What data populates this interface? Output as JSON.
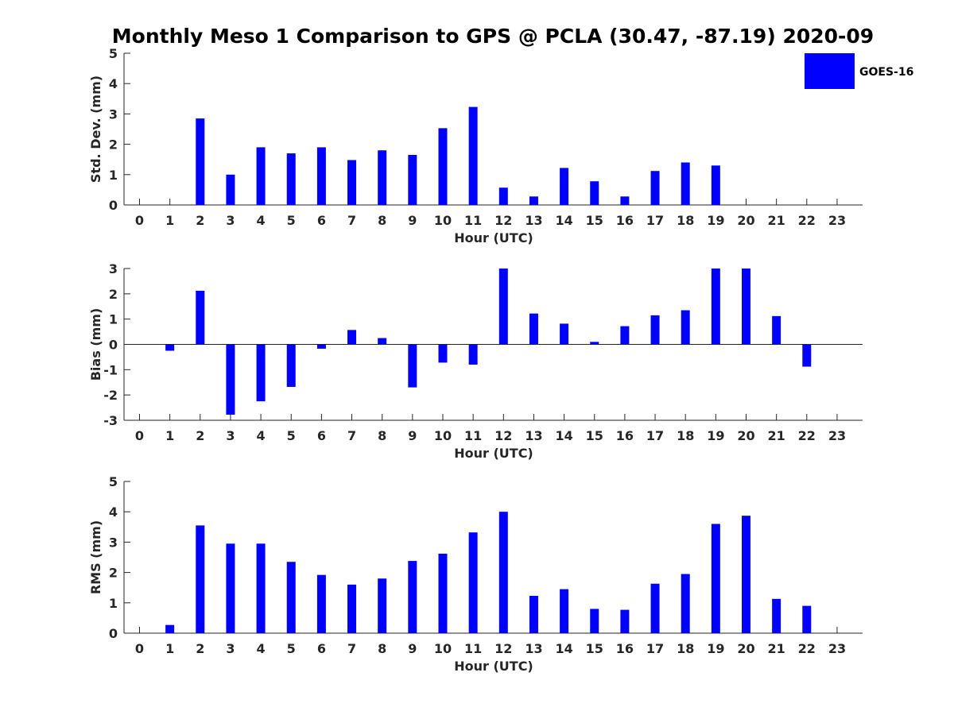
{
  "title": "Monthly Meso 1 Comparison to GPS @ PCLA (30.47, -87.19) 2020-09",
  "legend": {
    "label": "GOES-16",
    "color": "#0000ff"
  },
  "chart_data": [
    {
      "type": "bar",
      "title": "Monthly Meso 1 Comparison to GPS @ PCLA (30.47, -87.19) 2020-09",
      "xlabel": "Hour (UTC)",
      "ylabel": "Std. Dev. (mm)",
      "ylim": [
        0,
        5
      ],
      "yticks": [
        "0",
        "1",
        "2",
        "3",
        "4",
        "5"
      ],
      "categories": [
        "0",
        "1",
        "2",
        "3",
        "4",
        "5",
        "6",
        "7",
        "8",
        "9",
        "10",
        "11",
        "12",
        "13",
        "14",
        "15",
        "16",
        "17",
        "18",
        "19",
        "20",
        "21",
        "22",
        "23"
      ],
      "series": [
        {
          "name": "GOES-16",
          "color": "#0000ff",
          "values": [
            null,
            null,
            2.85,
            1.0,
            1.9,
            1.7,
            1.9,
            1.48,
            1.8,
            1.65,
            2.53,
            3.23,
            0.57,
            0.28,
            1.22,
            0.78,
            0.28,
            1.12,
            1.4,
            1.3,
            null,
            null,
            null,
            null
          ]
        }
      ],
      "zero_line": false
    },
    {
      "type": "bar",
      "xlabel": "Hour (UTC)",
      "ylabel": "Bias (mm)",
      "ylim": [
        -3,
        3
      ],
      "yticks": [
        "-3",
        "-2",
        "-1",
        "0",
        "1",
        "2",
        "3"
      ],
      "categories": [
        "0",
        "1",
        "2",
        "3",
        "4",
        "5",
        "6",
        "7",
        "8",
        "9",
        "10",
        "11",
        "12",
        "13",
        "14",
        "15",
        "16",
        "17",
        "18",
        "19",
        "20",
        "21",
        "22",
        "23"
      ],
      "series": [
        {
          "name": "GOES-16",
          "color": "#0000ff",
          "values": [
            null,
            -0.25,
            2.12,
            -2.78,
            -2.25,
            -1.68,
            -0.17,
            0.57,
            0.25,
            -1.7,
            -0.72,
            -0.8,
            3.0,
            1.22,
            0.82,
            0.1,
            0.72,
            1.15,
            1.35,
            3.0,
            3.0,
            1.12,
            -0.88,
            null
          ]
        }
      ],
      "zero_line": true
    },
    {
      "type": "bar",
      "xlabel": "Hour (UTC)",
      "ylabel": "RMS (mm)",
      "ylim": [
        0,
        5
      ],
      "yticks": [
        "0",
        "1",
        "2",
        "3",
        "4",
        "5"
      ],
      "categories": [
        "0",
        "1",
        "2",
        "3",
        "4",
        "5",
        "6",
        "7",
        "8",
        "9",
        "10",
        "11",
        "12",
        "13",
        "14",
        "15",
        "16",
        "17",
        "18",
        "19",
        "20",
        "21",
        "22",
        "23"
      ],
      "series": [
        {
          "name": "GOES-16",
          "color": "#0000ff",
          "values": [
            null,
            0.27,
            3.55,
            2.95,
            2.95,
            2.35,
            1.92,
            1.6,
            1.8,
            2.38,
            2.62,
            3.32,
            4.0,
            1.23,
            1.45,
            0.8,
            0.77,
            1.63,
            1.95,
            3.6,
            3.87,
            1.13,
            0.9,
            null
          ]
        }
      ],
      "zero_line": false
    }
  ]
}
